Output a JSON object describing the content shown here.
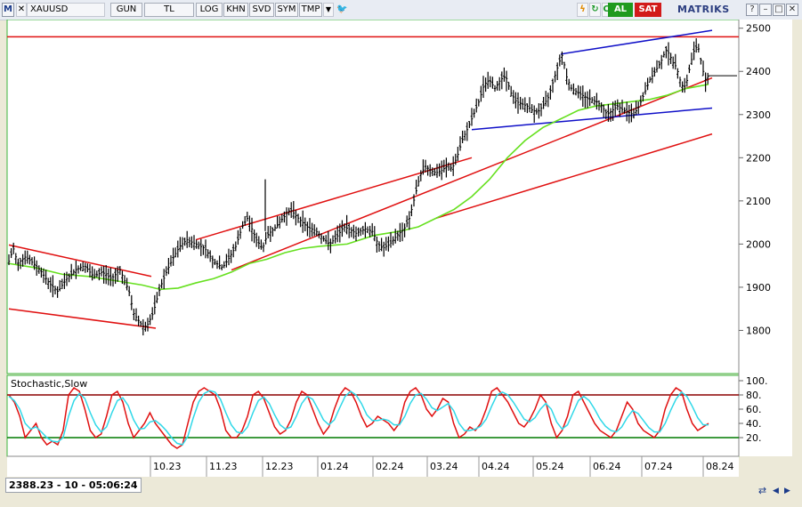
{
  "toolbar": {
    "app_badge": "M",
    "symbol": "XAUUSD",
    "buttons": [
      "GUN",
      "TL",
      "LOG",
      "KHN",
      "SVD",
      "SYM",
      "TMP"
    ],
    "buy_label": "AL",
    "sell_label": "SAT",
    "logo_text": "MATRIKS"
  },
  "status": {
    "readout": "2388.23 - 10 - 05:06:24"
  },
  "colors": {
    "price": "#000000",
    "ma": "#66e01f",
    "channel": "#e01010",
    "wedge": "#1010c8",
    "stoch_k": "#e01010",
    "stoch_d": "#30d8e8",
    "level_high": "#8b0000",
    "level_low": "#007a00"
  },
  "chart_data": [
    {
      "type": "candlestick",
      "yticks": [
        1800,
        1900,
        2000,
        2100,
        2200,
        2300,
        2400,
        2500
      ],
      "ylim": [
        1700,
        2520
      ],
      "xticks": [
        "10.23",
        "11.23",
        "12.23",
        "01.24",
        "02.24",
        "03.24",
        "04.24",
        "05.24",
        "06.24",
        "07.24",
        "08.24"
      ],
      "price_path": [
        [
          0,
          1960
        ],
        [
          5,
          1990
        ],
        [
          10,
          1955
        ],
        [
          18,
          1970
        ],
        [
          25,
          1960
        ],
        [
          35,
          1940
        ],
        [
          45,
          1910
        ],
        [
          55,
          1890
        ],
        [
          65,
          1920
        ],
        [
          75,
          1940
        ],
        [
          85,
          1950
        ],
        [
          95,
          1925
        ],
        [
          105,
          1935
        ],
        [
          115,
          1920
        ],
        [
          125,
          1940
        ],
        [
          135,
          1890
        ],
        [
          140,
          1840
        ],
        [
          145,
          1825
        ],
        [
          150,
          1810
        ],
        [
          155,
          1810
        ],
        [
          162,
          1840
        ],
        [
          170,
          1900
        ],
        [
          178,
          1940
        ],
        [
          185,
          1970
        ],
        [
          192,
          1995
        ],
        [
          200,
          2010
        ],
        [
          210,
          2000
        ],
        [
          220,
          1990
        ],
        [
          230,
          1960
        ],
        [
          240,
          1945
        ],
        [
          248,
          1970
        ],
        [
          255,
          1995
        ],
        [
          262,
          2040
        ],
        [
          268,
          2060
        ],
        [
          272,
          2040
        ],
        [
          278,
          2010
        ],
        [
          285,
          1990
        ],
        [
          290,
          2020
        ],
        [
          300,
          2040
        ],
        [
          308,
          2060
        ],
        [
          316,
          2080
        ],
        [
          325,
          2060
        ],
        [
          335,
          2040
        ],
        [
          345,
          2030
        ],
        [
          352,
          2015
        ],
        [
          360,
          2000
        ],
        [
          368,
          2015
        ],
        [
          376,
          2040
        ],
        [
          382,
          2035
        ],
        [
          390,
          2025
        ],
        [
          400,
          2035
        ],
        [
          408,
          2030
        ],
        [
          415,
          2000
        ],
        [
          420,
          1990
        ],
        [
          428,
          2000
        ],
        [
          436,
          2020
        ],
        [
          444,
          2035
        ],
        [
          450,
          2060
        ],
        [
          456,
          2110
        ],
        [
          462,
          2160
        ],
        [
          468,
          2180
        ],
        [
          474,
          2170
        ],
        [
          480,
          2165
        ],
        [
          486,
          2170
        ],
        [
          492,
          2180
        ],
        [
          498,
          2175
        ],
        [
          504,
          2205
        ],
        [
          510,
          2245
        ],
        [
          516,
          2270
        ],
        [
          522,
          2300
        ],
        [
          528,
          2330
        ],
        [
          534,
          2370
        ],
        [
          540,
          2380
        ],
        [
          546,
          2360
        ],
        [
          552,
          2380
        ],
        [
          558,
          2390
        ],
        [
          564,
          2350
        ],
        [
          570,
          2330
        ],
        [
          576,
          2325
        ],
        [
          582,
          2320
        ],
        [
          588,
          2310
        ],
        [
          594,
          2305
        ],
        [
          600,
          2320
        ],
        [
          606,
          2340
        ],
        [
          612,
          2380
        ],
        [
          618,
          2420
        ],
        [
          622,
          2440
        ],
        [
          626,
          2390
        ],
        [
          632,
          2360
        ],
        [
          640,
          2350
        ],
        [
          648,
          2340
        ],
        [
          654,
          2335
        ],
        [
          660,
          2330
        ],
        [
          666,
          2320
        ],
        [
          672,
          2300
        ],
        [
          678,
          2310
        ],
        [
          684,
          2320
        ],
        [
          690,
          2310
        ],
        [
          696,
          2305
        ],
        [
          702,
          2300
        ],
        [
          708,
          2320
        ],
        [
          714,
          2350
        ],
        [
          720,
          2380
        ],
        [
          726,
          2400
        ],
        [
          732,
          2420
        ],
        [
          738,
          2450
        ],
        [
          742,
          2440
        ],
        [
          746,
          2420
        ],
        [
          750,
          2410
        ],
        [
          754,
          2380
        ],
        [
          758,
          2360
        ],
        [
          762,
          2380
        ],
        [
          766,
          2420
        ],
        [
          770,
          2450
        ],
        [
          774,
          2460
        ],
        [
          778,
          2420
        ],
        [
          782,
          2380
        ],
        [
          786,
          2390
        ]
      ],
      "ma_path": [
        [
          0,
          1955
        ],
        [
          30,
          1945
        ],
        [
          60,
          1930
        ],
        [
          90,
          1925
        ],
        [
          120,
          1915
        ],
        [
          150,
          1905
        ],
        [
          170,
          1895
        ],
        [
          190,
          1898
        ],
        [
          210,
          1910
        ],
        [
          230,
          1920
        ],
        [
          250,
          1935
        ],
        [
          270,
          1955
        ],
        [
          290,
          1965
        ],
        [
          310,
          1980
        ],
        [
          330,
          1990
        ],
        [
          350,
          1995
        ],
        [
          380,
          2000
        ],
        [
          410,
          2020
        ],
        [
          440,
          2030
        ],
        [
          460,
          2040
        ],
        [
          480,
          2060
        ],
        [
          500,
          2080
        ],
        [
          520,
          2110
        ],
        [
          540,
          2150
        ],
        [
          560,
          2200
        ],
        [
          580,
          2240
        ],
        [
          600,
          2270
        ],
        [
          620,
          2290
        ],
        [
          640,
          2310
        ],
        [
          660,
          2320
        ],
        [
          680,
          2325
        ],
        [
          700,
          2330
        ],
        [
          720,
          2335
        ],
        [
          740,
          2345
        ],
        [
          760,
          2360
        ],
        [
          786,
          2370
        ]
      ],
      "channel_lines": [
        {
          "from": [
            0,
            1998
          ],
          "to": [
            160,
            1925
          ]
        },
        {
          "from": [
            0,
            1850
          ],
          "to": [
            165,
            1805
          ]
        },
        {
          "from": [
            210,
            2010
          ],
          "to": [
            520,
            2200
          ]
        },
        {
          "from": [
            250,
            1940
          ],
          "to": [
            790,
            2385
          ]
        },
        {
          "from": [
            480,
            2060
          ],
          "to": [
            790,
            2255
          ]
        }
      ],
      "resistance": 2480,
      "wedge_lines": [
        {
          "from": [
            620,
            2440
          ],
          "to": [
            790,
            2495
          ]
        },
        {
          "from": [
            520,
            2265
          ],
          "to": [
            790,
            2315
          ]
        }
      ]
    },
    {
      "type": "line",
      "title": "Stochastic,Slow",
      "yticks": [
        20,
        40,
        60,
        80,
        100
      ],
      "ylim": [
        0,
        100
      ],
      "levels": [
        80,
        20
      ],
      "series": [
        {
          "values": [
            80,
            70,
            50,
            20,
            30,
            40,
            20,
            10,
            15,
            10,
            30,
            80,
            90,
            85,
            60,
            30,
            20,
            25,
            50,
            80,
            85,
            70,
            40,
            20,
            30,
            40,
            55,
            40,
            30,
            20,
            10,
            5,
            10,
            40,
            70,
            85,
            90,
            85,
            80,
            60,
            30,
            20,
            20,
            30,
            50,
            80,
            85,
            75,
            55,
            35,
            25,
            30,
            45,
            70,
            85,
            80,
            60,
            40,
            25,
            35,
            60,
            80,
            90,
            85,
            70,
            50,
            35,
            40,
            50,
            45,
            40,
            30,
            40,
            70,
            85,
            90,
            80,
            60,
            50,
            60,
            75,
            70,
            40,
            20,
            25,
            35,
            30,
            40,
            60,
            85,
            90,
            80,
            70,
            55,
            40,
            35,
            45,
            60,
            80,
            70,
            40,
            20,
            30,
            50,
            80,
            85,
            70,
            55,
            40,
            30,
            25,
            20,
            30,
            50,
            70,
            60,
            40,
            30,
            25,
            20,
            30,
            60,
            80,
            90,
            85,
            60,
            40,
            30,
            35,
            40
          ]
        },
        {
          "values": [
            78,
            72,
            60,
            40,
            32,
            35,
            28,
            20,
            15,
            14,
            20,
            50,
            72,
            82,
            75,
            55,
            38,
            28,
            35,
            55,
            72,
            76,
            65,
            45,
            32,
            33,
            42,
            44,
            38,
            30,
            20,
            12,
            10,
            22,
            48,
            70,
            82,
            86,
            84,
            74,
            55,
            38,
            28,
            26,
            35,
            55,
            72,
            77,
            68,
            52,
            38,
            32,
            35,
            50,
            68,
            78,
            74,
            60,
            45,
            38,
            45,
            62,
            78,
            85,
            80,
            68,
            52,
            44,
            44,
            46,
            44,
            38,
            38,
            50,
            68,
            80,
            82,
            74,
            62,
            58,
            63,
            68,
            58,
            40,
            30,
            30,
            32,
            36,
            46,
            64,
            80,
            84,
            80,
            70,
            58,
            46,
            42,
            48,
            60,
            68,
            60,
            42,
            32,
            38,
            55,
            72,
            78,
            72,
            60,
            46,
            36,
            30,
            28,
            35,
            48,
            58,
            54,
            44,
            34,
            28,
            28,
            40,
            58,
            74,
            84,
            78,
            64,
            48,
            38,
            38
          ]
        }
      ]
    }
  ]
}
